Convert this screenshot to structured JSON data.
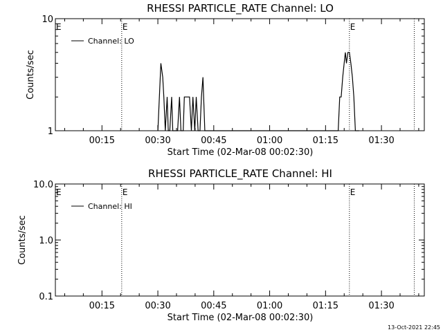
{
  "footer": {
    "timestamp": "13-Oct-2021 22:45"
  },
  "chart_data": [
    {
      "type": "line",
      "title": "RHESSI PARTICLE_RATE Channel: LO",
      "xlabel": "Start Time (02-Mar-08 00:02:30)",
      "ylabel": "Counts/sec",
      "y_scale": "log",
      "xlim_minutes": [
        2.5,
        101.5
      ],
      "ylim": [
        1,
        10
      ],
      "x_tick_labels": [
        "00:15",
        "00:30",
        "00:45",
        "01:00",
        "01:15",
        "01:30"
      ],
      "x_tick_minutes": [
        15,
        30,
        45,
        60,
        75,
        90
      ],
      "y_tick_labels": [
        "1",
        "10"
      ],
      "y_tick_values": [
        1,
        10
      ],
      "legend": {
        "entries": [
          "Channel: LO"
        ],
        "position": "top-left"
      },
      "event_lines": [
        {
          "minute": 20.3,
          "marker": "E"
        },
        {
          "minute": 81.4,
          "marker": "E"
        },
        {
          "minute": 98.8,
          "marker": ""
        }
      ],
      "series": [
        {
          "name": "Channel: LO",
          "x": [
            30,
            30.8,
            31.3,
            31.6,
            32.0,
            32.5,
            32.8,
            33.2,
            33.7,
            34.0,
            34.5,
            35.0,
            35.3,
            35.8,
            36.2,
            36.8,
            37.1,
            37.5,
            38.0,
            38.5,
            39.0,
            39.4,
            39.9,
            40.3,
            40.8,
            41.3,
            41.7,
            42.1,
            42.6,
            43.0,
            78.4,
            78.8,
            79.2,
            79.6,
            80.0,
            80.3,
            80.6,
            81.0,
            81.4,
            81.8,
            82.2,
            82.6,
            83.0,
            83.4,
            84.0
          ],
          "y": [
            1,
            4,
            3,
            2,
            1,
            2,
            1,
            1,
            2,
            1,
            1,
            1,
            1,
            2,
            1,
            1,
            2,
            2,
            2,
            2,
            1,
            2,
            1,
            2,
            1,
            1,
            2,
            3,
            1,
            1,
            1,
            2,
            2,
            3,
            4,
            5,
            4,
            5,
            5,
            4,
            3,
            2,
            1,
            1,
            1
          ]
        }
      ]
    },
    {
      "type": "line",
      "title": "RHESSI PARTICLE_RATE Channel: HI",
      "xlabel": "Start Time (02-Mar-08 00:02:30)",
      "ylabel": "Counts/sec",
      "y_scale": "log",
      "xlim_minutes": [
        2.5,
        101.5
      ],
      "ylim": [
        0.1,
        10
      ],
      "x_tick_labels": [
        "00:15",
        "00:30",
        "00:45",
        "01:00",
        "01:15",
        "01:30"
      ],
      "x_tick_minutes": [
        15,
        30,
        45,
        60,
        75,
        90
      ],
      "y_tick_labels": [
        "0.1",
        "1.0",
        "10.0"
      ],
      "y_tick_values": [
        0.1,
        1,
        10
      ],
      "legend": {
        "entries": [
          "Channel: HI"
        ],
        "position": "top-left"
      },
      "event_lines": [
        {
          "minute": 20.3,
          "marker": "E"
        },
        {
          "minute": 81.4,
          "marker": "E"
        },
        {
          "minute": 98.8,
          "marker": ""
        }
      ],
      "series": [
        {
          "name": "Channel: HI",
          "x": [],
          "y": []
        }
      ]
    }
  ]
}
